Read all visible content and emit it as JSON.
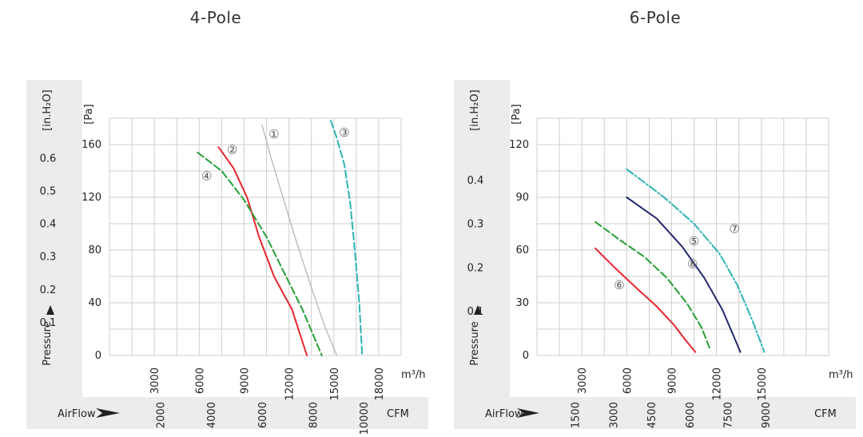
{
  "chart_data": [
    {
      "type": "line",
      "title": "4-Pole",
      "x": {
        "unit": "m³/h",
        "ticks": [
          3000,
          6000,
          9000,
          12000,
          15000,
          18000
        ],
        "range": [
          0,
          19500
        ]
      },
      "x2": {
        "label": "AirFlow",
        "unit": "CFM",
        "ticks": [
          2000,
          4000,
          6000,
          8000,
          10000
        ]
      },
      "y": {
        "unit": "[Pa]",
        "ticks": [
          0,
          40,
          80,
          120,
          160
        ],
        "range": [
          0,
          180
        ]
      },
      "y2": {
        "label": "Pressure",
        "unit": "[in.H₂O]",
        "ticks": [
          0.1,
          0.2,
          0.3,
          0.4,
          0.5,
          0.6
        ]
      },
      "grid": true,
      "series": [
        {
          "name": "①",
          "color": "#b5b5b5",
          "dash": "solid",
          "points": [
            [
              10200,
              175
            ],
            [
              10800,
              150
            ],
            [
              11600,
              120
            ],
            [
              12400,
              90
            ],
            [
              13400,
              55
            ],
            [
              14400,
              22
            ],
            [
              15200,
              0
            ]
          ]
        },
        {
          "name": "②",
          "color": "#e8262d",
          "dash": "solid",
          "points": [
            [
              7300,
              158
            ],
            [
              8300,
              142
            ],
            [
              9200,
              120
            ],
            [
              10000,
              90
            ],
            [
              11000,
              60
            ],
            [
              12200,
              35
            ],
            [
              13200,
              0
            ]
          ]
        },
        {
          "name": "③",
          "color": "#2fb3b3",
          "dash": "dash",
          "points": [
            [
              14800,
              178
            ],
            [
              15200,
              165
            ],
            [
              15700,
              145
            ],
            [
              16100,
              115
            ],
            [
              16400,
              80
            ],
            [
              16700,
              40
            ],
            [
              16900,
              0
            ]
          ]
        },
        {
          "name": "④",
          "color": "#25a035",
          "dash": "dash",
          "points": [
            [
              5900,
              154
            ],
            [
              7500,
              140
            ],
            [
              9000,
              118
            ],
            [
              10500,
              90
            ],
            [
              11800,
              60
            ],
            [
              12900,
              35
            ],
            [
              14200,
              0
            ]
          ]
        }
      ],
      "labels": [
        {
          "text": "①",
          "x": 11000,
          "y": 168
        },
        {
          "text": "②",
          "x": 8200,
          "y": 156
        },
        {
          "text": "③",
          "x": 15700,
          "y": 169
        },
        {
          "text": "④",
          "x": 6500,
          "y": 136
        }
      ]
    },
    {
      "type": "line",
      "title": "6-Pole",
      "x": {
        "unit": "m³/h",
        "ticks": [
          3000,
          6000,
          9000,
          12000,
          15000
        ],
        "range": [
          0,
          19500
        ]
      },
      "x2": {
        "label": "AirFlow",
        "unit": "CFM",
        "ticks": [
          1500,
          3000,
          4500,
          6000,
          7500,
          9000
        ]
      },
      "y": {
        "unit": "[Pa]",
        "ticks": [
          0,
          30,
          60,
          90,
          120
        ],
        "range": [
          0,
          135
        ]
      },
      "y2": {
        "label": "Pressure",
        "unit": "[in.H₂O]",
        "ticks": [
          0.1,
          0.2,
          0.3,
          0.4
        ]
      },
      "grid": true,
      "series": [
        {
          "name": "⑤",
          "color": "#23286d",
          "dash": "solid",
          "points": [
            [
              6000,
              90
            ],
            [
              8000,
              78
            ],
            [
              9700,
              62
            ],
            [
              11200,
              44
            ],
            [
              12400,
              26
            ],
            [
              13200,
              10
            ],
            [
              13600,
              2
            ]
          ]
        },
        {
          "name": "⑥",
          "color": "#e8262d",
          "dash": "solid",
          "points": [
            [
              3900,
              61
            ],
            [
              5200,
              50
            ],
            [
              6700,
              38
            ],
            [
              8000,
              28
            ],
            [
              9200,
              17
            ],
            [
              10000,
              8
            ],
            [
              10600,
              2
            ]
          ]
        },
        {
          "name": "⑦",
          "color": "#2fb3b3",
          "dash": "dashdot",
          "points": [
            [
              6000,
              106
            ],
            [
              8500,
              90
            ],
            [
              10500,
              75
            ],
            [
              12200,
              58
            ],
            [
              13400,
              40
            ],
            [
              14400,
              20
            ],
            [
              15200,
              2
            ]
          ]
        },
        {
          "name": "⑧",
          "color": "#25a035",
          "dash": "dash",
          "points": [
            [
              3900,
              76
            ],
            [
              5500,
              66
            ],
            [
              7200,
              56
            ],
            [
              8700,
              44
            ],
            [
              10000,
              30
            ],
            [
              11000,
              16
            ],
            [
              11600,
              3
            ]
          ]
        }
      ],
      "labels": [
        {
          "text": "⑤",
          "x": 10500,
          "y": 65
        },
        {
          "text": "⑥",
          "x": 5500,
          "y": 40
        },
        {
          "text": "⑦",
          "x": 13200,
          "y": 72
        },
        {
          "text": "⑧",
          "x": 10400,
          "y": 52
        }
      ]
    }
  ]
}
